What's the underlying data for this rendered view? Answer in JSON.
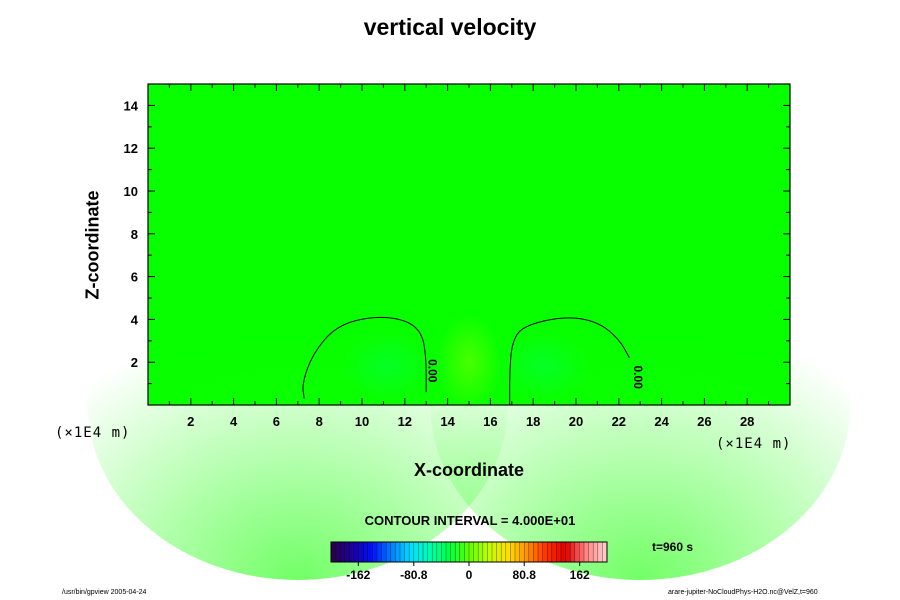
{
  "chart_data": {
    "type": "heatmap",
    "title": "vertical velocity",
    "xlabel": "X-coordinate",
    "ylabel": "Z-coordinate",
    "x_unit": "(×1E4 m)",
    "y_unit": "(×1E4 m)",
    "xlim": [
      0,
      30
    ],
    "ylim": [
      0,
      15
    ],
    "x_ticks": [
      2,
      4,
      6,
      8,
      10,
      12,
      14,
      16,
      18,
      20,
      22,
      24,
      26,
      28
    ],
    "y_ticks": [
      2,
      4,
      6,
      8,
      10,
      12,
      14
    ],
    "contour_interval_label": "CONTOUR INTERVAL = 4.000E+01",
    "contours": [
      {
        "label": "0.00",
        "points": [
          [
            7.3,
            0.3
          ],
          [
            7.2,
            1.0
          ],
          [
            7.7,
            2.4
          ],
          [
            8.8,
            3.7
          ],
          [
            10.5,
            4.15
          ],
          [
            12.0,
            4.0
          ],
          [
            12.8,
            3.4
          ],
          [
            13.0,
            2.2
          ],
          [
            13.0,
            0.6
          ]
        ],
        "label_pos": [
          13.1,
          1.6
        ]
      },
      {
        "label": "0.00",
        "points": [
          [
            16.9,
            0.0
          ],
          [
            16.9,
            1.5
          ],
          [
            17.0,
            2.9
          ],
          [
            17.5,
            3.7
          ],
          [
            19.5,
            4.15
          ],
          [
            21.0,
            3.9
          ],
          [
            22.0,
            3.1
          ],
          [
            22.5,
            2.2
          ]
        ],
        "label_pos": [
          22.7,
          1.3
        ]
      }
    ],
    "colorbar": {
      "tick_labels": [
        "-162",
        "-80.8",
        "0",
        "80.8",
        "162"
      ],
      "tick_values": [
        -162,
        -80.8,
        0,
        80.8,
        162
      ],
      "range": [
        -202,
        202
      ],
      "colors": [
        "#2a0050",
        "#1a00a0",
        "#0010ff",
        "#0080ff",
        "#00e0ff",
        "#00ffb0",
        "#00ff40",
        "#60ff00",
        "#c0ff00",
        "#ffe000",
        "#ff9000",
        "#ff3000",
        "#e00000",
        "#ff8080",
        "#ffc8c8"
      ]
    },
    "time_label": "t=960 s",
    "field_color": "#08ff00"
  },
  "footer": {
    "left": "/usr/bin/gpview 2005-04-24",
    "right": "arare-jupiter-NoCloudPhys-H2O.nc@VelZ,t=960"
  }
}
